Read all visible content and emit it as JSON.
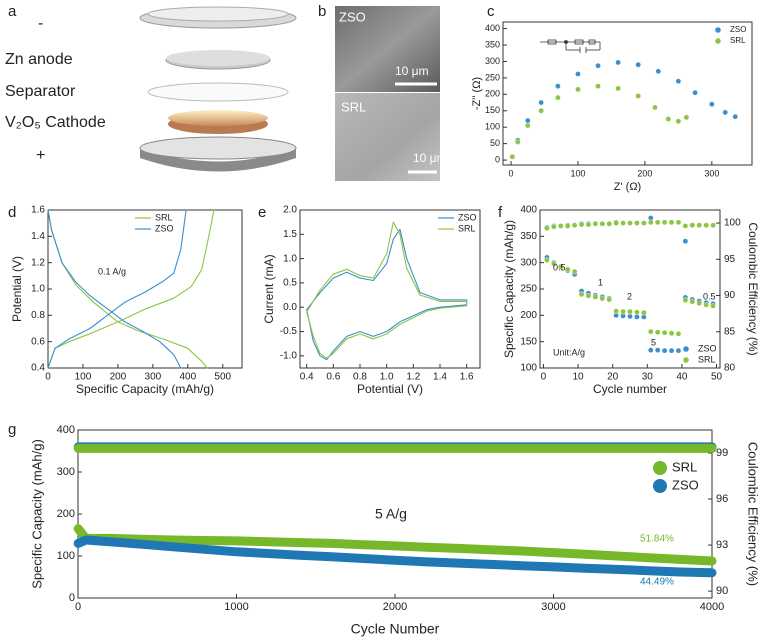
{
  "figure": {
    "panel_a": {
      "label": "a",
      "texts": [
        "-",
        "Zn anode",
        "Separator",
        "V₂O₅ Cathode",
        "+"
      ]
    },
    "panel_b": {
      "label": "b",
      "images": [
        {
          "label": "ZSO",
          "scale": "10 μm"
        },
        {
          "label": "SRL",
          "scale": "10 μm"
        }
      ]
    }
  },
  "chart_data": [
    {
      "panel": "c",
      "type": "scatter",
      "xlabel": "Z' (Ω)",
      "ylabel": "-Z'' (Ω)",
      "xlim": [
        -12,
        360
      ],
      "ylim": [
        -15,
        420
      ],
      "xticks": [
        0,
        100,
        200,
        300
      ],
      "yticks": [
        0,
        50,
        100,
        150,
        200,
        250,
        300,
        350,
        400
      ],
      "legend": "upper right",
      "series": [
        {
          "name": "ZSO",
          "color": "#3b8fd0",
          "x": [
            2,
            10,
            25,
            45,
            70,
            100,
            130,
            160,
            190,
            220,
            250,
            275,
            300,
            320,
            335
          ],
          "values": [
            10,
            60,
            120,
            175,
            225,
            262,
            287,
            297,
            290,
            270,
            240,
            205,
            170,
            145,
            132
          ]
        },
        {
          "name": "SRL",
          "color": "#8cc540",
          "x": [
            2,
            10,
            25,
            45,
            70,
            100,
            130,
            160,
            190,
            215,
            235,
            250,
            262
          ],
          "values": [
            10,
            55,
            105,
            150,
            190,
            215,
            225,
            218,
            195,
            160,
            125,
            118,
            130
          ]
        }
      ]
    },
    {
      "panel": "d",
      "type": "line",
      "xlabel": "Specific Capacity (mAh/g)",
      "ylabel": "Potential (V)",
      "xlim": [
        0,
        555
      ],
      "ylim": [
        0.4,
        1.6
      ],
      "xticks": [
        0,
        100,
        200,
        300,
        400,
        500
      ],
      "yticks": [
        0.4,
        0.6,
        0.8,
        {
          "value": 1,
          "label": "1.0"
        },
        1.2,
        1.4,
        1.6
      ],
      "legend": "upper center",
      "annotations": [
        {
          "text": "0.1 A/g"
        }
      ],
      "series": [
        {
          "name": "SRL",
          "color": "#8cc540",
          "x": [
            0,
            10,
            40,
            80,
            130,
            200,
            260,
            330,
            400,
            440,
            455,
            null,
            0,
            20,
            60,
            120,
            200,
            280,
            360,
            410,
            440,
            460,
            475
          ],
          "values": [
            1.6,
            1.45,
            1.2,
            1.03,
            0.9,
            0.75,
            0.68,
            0.62,
            0.55,
            0.45,
            0.4,
            null,
            0.4,
            0.55,
            0.6,
            0.66,
            0.75,
            0.85,
            0.93,
            1.02,
            1.15,
            1.4,
            1.6
          ]
        },
        {
          "name": "ZSO",
          "color": "#3b8fd0",
          "x": [
            0,
            10,
            40,
            80,
            120,
            170,
            220,
            270,
            320,
            360,
            380,
            null,
            0,
            20,
            60,
            120,
            170,
            220,
            280,
            330,
            360,
            380,
            395
          ],
          "values": [
            1.6,
            1.45,
            1.2,
            1.05,
            0.95,
            0.85,
            0.75,
            0.68,
            0.6,
            0.5,
            0.4,
            null,
            0.4,
            0.55,
            0.62,
            0.7,
            0.8,
            0.9,
            0.98,
            1.06,
            1.12,
            1.3,
            1.6
          ]
        }
      ]
    },
    {
      "panel": "e",
      "type": "line",
      "xlabel": "Potential (V)",
      "ylabel": "Current (mA)",
      "xlim": [
        0.35,
        1.7
      ],
      "ylim": [
        -1.25,
        2.0
      ],
      "xticks": [
        0.4,
        0.6,
        0.8,
        {
          "value": 1,
          "label": "1.0"
        },
        1.2,
        1.4,
        1.6
      ],
      "yticks": [
        {
          "value": -1,
          "label": "-1.0"
        },
        -0.5,
        {
          "value": 0,
          "label": "0.0"
        },
        0.5,
        {
          "value": 1,
          "label": "1.0"
        },
        1.5,
        {
          "value": 2,
          "label": "2.0"
        }
      ],
      "legend": "upper right",
      "series": [
        {
          "name": "ZSO",
          "color": "#3b8fd0",
          "x": [
            0.4,
            0.5,
            0.6,
            0.7,
            0.8,
            0.9,
            1.0,
            1.05,
            1.1,
            1.15,
            1.25,
            1.4,
            1.6,
            1.6,
            1.4,
            1.3,
            1.1,
            1.0,
            0.9,
            0.8,
            0.7,
            0.6,
            0.55,
            0.5,
            0.45,
            0.4
          ],
          "values": [
            -0.05,
            0.3,
            0.6,
            0.72,
            0.6,
            0.55,
            0.9,
            1.4,
            1.6,
            1.0,
            0.3,
            0.15,
            0.15,
            0.05,
            0.0,
            -0.05,
            -0.3,
            -0.5,
            -0.6,
            -0.5,
            -0.6,
            -0.9,
            -1.08,
            -1.0,
            -0.7,
            -0.05
          ]
        },
        {
          "name": "SRL",
          "color": "#8cc540",
          "x": [
            0.4,
            0.5,
            0.6,
            0.7,
            0.8,
            0.9,
            1.0,
            1.05,
            1.1,
            1.15,
            1.25,
            1.4,
            1.6,
            1.6,
            1.4,
            1.3,
            1.1,
            1.0,
            0.9,
            0.8,
            0.7,
            0.6,
            0.55,
            0.5,
            0.45,
            0.4
          ],
          "values": [
            -0.1,
            0.35,
            0.68,
            0.78,
            0.65,
            0.6,
            1.1,
            1.75,
            1.5,
            0.8,
            0.25,
            0.12,
            0.12,
            0.03,
            -0.02,
            -0.08,
            -0.35,
            -0.55,
            -0.65,
            -0.55,
            -0.65,
            -0.95,
            -1.05,
            -0.95,
            -0.6,
            -0.1
          ]
        }
      ]
    },
    {
      "panel": "f",
      "type": "scatter",
      "xlabel": "Cycle number",
      "ylabel": "Specific Capacity (mAh/g)",
      "y2label": "Coulombic Efficiency (%)",
      "xlim": [
        -1,
        51
      ],
      "ylim": [
        100,
        400
      ],
      "y2lim": [
        80,
        101.8
      ],
      "xticks": [
        0,
        10,
        20,
        30,
        40,
        50
      ],
      "yticks": [
        100,
        150,
        200,
        250,
        300,
        350,
        400
      ],
      "y2ticks": [
        80,
        85,
        90,
        95,
        100
      ],
      "legend": "lower right",
      "annotations": [
        {
          "text": "0.5"
        },
        {
          "text": "1"
        },
        {
          "text": "2"
        },
        {
          "text": "5"
        },
        {
          "text": "0.5"
        },
        {
          "text": "Unit:A/g"
        }
      ],
      "series": [
        {
          "name": "ZSO",
          "color": "#3b8fd0",
          "x": [
            1,
            3,
            5,
            7,
            9,
            11,
            13,
            15,
            17,
            19,
            21,
            23,
            25,
            27,
            29,
            31,
            33,
            35,
            37,
            39,
            41,
            43,
            45,
            47,
            49
          ],
          "values": [
            310,
            300,
            293,
            285,
            278,
            246,
            242,
            238,
            235,
            232,
            200,
            199,
            198,
            197,
            197,
            134,
            134,
            133,
            133,
            133,
            234,
            230,
            227,
            224,
            222
          ]
        },
        {
          "name": "SRL",
          "color": "#8cc540",
          "x": [
            1,
            3,
            5,
            7,
            9,
            11,
            13,
            15,
            17,
            19,
            21,
            23,
            25,
            27,
            29,
            31,
            33,
            35,
            37,
            39,
            41,
            43,
            45,
            47,
            49
          ],
          "values": [
            305,
            298,
            292,
            287,
            283,
            240,
            237,
            235,
            232,
            230,
            208,
            207,
            207,
            206,
            205,
            169,
            168,
            167,
            166,
            165,
            229,
            226,
            223,
            220,
            218
          ]
        },
        {
          "name": "ZSO",
          "color": "#3b8fd0",
          "axis": "y2",
          "x": [
            1,
            3,
            5,
            7,
            9,
            11,
            13,
            15,
            17,
            19,
            21,
            23,
            25,
            27,
            29,
            31,
            33,
            35,
            37,
            39,
            41,
            43,
            45,
            47,
            49
          ],
          "values": [
            99.4,
            99.6,
            99.6,
            99.7,
            99.7,
            99.9,
            99.9,
            99.9,
            99.9,
            99.9,
            100.1,
            100,
            100,
            100,
            100,
            100.7,
            100.1,
            100.1,
            100.1,
            100.1,
            97.5,
            99.7,
            99.7,
            99.7,
            99.7
          ]
        },
        {
          "name": "SRL",
          "color": "#8cc540",
          "axis": "y2",
          "x": [
            1,
            3,
            5,
            7,
            9,
            11,
            13,
            15,
            17,
            19,
            21,
            23,
            25,
            27,
            29,
            31,
            33,
            35,
            37,
            39,
            41,
            43,
            45,
            47,
            49
          ],
          "values": [
            99.3,
            99.5,
            99.6,
            99.6,
            99.7,
            99.8,
            99.8,
            99.9,
            99.9,
            99.9,
            100,
            100,
            100,
            100,
            100,
            100.1,
            100.1,
            100.1,
            100.1,
            100.1,
            99.6,
            99.7,
            99.7,
            99.7,
            99.7
          ]
        }
      ]
    },
    {
      "panel": "g",
      "type": "line",
      "linewidth": 9,
      "legend_marker": "circle",
      "xlabel": "Cycle Number",
      "ylabel": "Specific Capacity (mAh/g)",
      "y2label": "Coulombic Efficiency (%)",
      "xlim": [
        0,
        4000
      ],
      "ylim": [
        0,
        400
      ],
      "y2lim": [
        89.55,
        100.5
      ],
      "xticks": [
        0,
        1000,
        2000,
        3000,
        4000
      ],
      "yticks": [
        0,
        100,
        200,
        300,
        400
      ],
      "y2ticks": [
        90,
        93,
        96,
        99
      ],
      "legend": "upper right",
      "annotations": [
        {
          "text": "5 A/g"
        },
        {
          "text": "51.84%",
          "color": "#76b82a"
        },
        {
          "text": "44.49%",
          "color": "#1f77b4"
        }
      ],
      "series": [
        {
          "name": "SRL",
          "color": "#76b82a",
          "x": [
            1,
            50,
            200,
            400,
            600,
            800,
            1000,
            1200,
            1400,
            1600,
            1800,
            2000,
            2200,
            2400,
            2600,
            2800,
            3000,
            3200,
            3400,
            3600,
            3800,
            4000
          ],
          "values": [
            165,
            142,
            142,
            140,
            138,
            137,
            136,
            134,
            132,
            130,
            127,
            124,
            121,
            118,
            115,
            112,
            108,
            104,
            100,
            96,
            92,
            88
          ]
        },
        {
          "name": "ZSO",
          "color": "#1f77b4",
          "x": [
            1,
            50,
            200,
            400,
            600,
            800,
            1000,
            1200,
            1400,
            1600,
            1800,
            2000,
            2200,
            2400,
            2600,
            2800,
            3000,
            3200,
            3400,
            3600,
            3800,
            4000
          ],
          "values": [
            130,
            138,
            134,
            128,
            122,
            116,
            110,
            106,
            102,
            98,
            94,
            90,
            86,
            83,
            80,
            77,
            74,
            71,
            68,
            65,
            62,
            60
          ]
        },
        {
          "name": "ZSO",
          "color": "#1f77b4",
          "axis": "y2",
          "x": [
            1,
            50,
            200,
            400,
            600,
            800,
            1000,
            1200,
            1400,
            1600,
            1800,
            2000,
            2200,
            2400,
            2600,
            2800,
            3000,
            3200,
            3400,
            3600,
            3800,
            4000
          ],
          "values": [
            99.4,
            99.4,
            99.4,
            99.4,
            99.4,
            99.4,
            99.4,
            99.4,
            99.4,
            99.4,
            99.4,
            99.4,
            99.4,
            99.4,
            99.4,
            99.4,
            99.4,
            99.4,
            99.4,
            99.4,
            99.4,
            99.4
          ]
        },
        {
          "name": "SRL",
          "color": "#76b82a",
          "axis": "y2",
          "x": [
            1,
            50,
            200,
            400,
            600,
            800,
            1000,
            1200,
            1400,
            1600,
            1800,
            2000,
            2200,
            2400,
            2600,
            2800,
            3000,
            3200,
            3400,
            3600,
            3800,
            4000
          ],
          "values": [
            99.3,
            99.3,
            99.3,
            99.3,
            99.3,
            99.3,
            99.3,
            99.3,
            99.3,
            99.3,
            99.3,
            99.3,
            99.3,
            99.3,
            99.3,
            99.3,
            99.3,
            99.3,
            99.3,
            99.3,
            99.3,
            99.3
          ]
        }
      ]
    }
  ]
}
